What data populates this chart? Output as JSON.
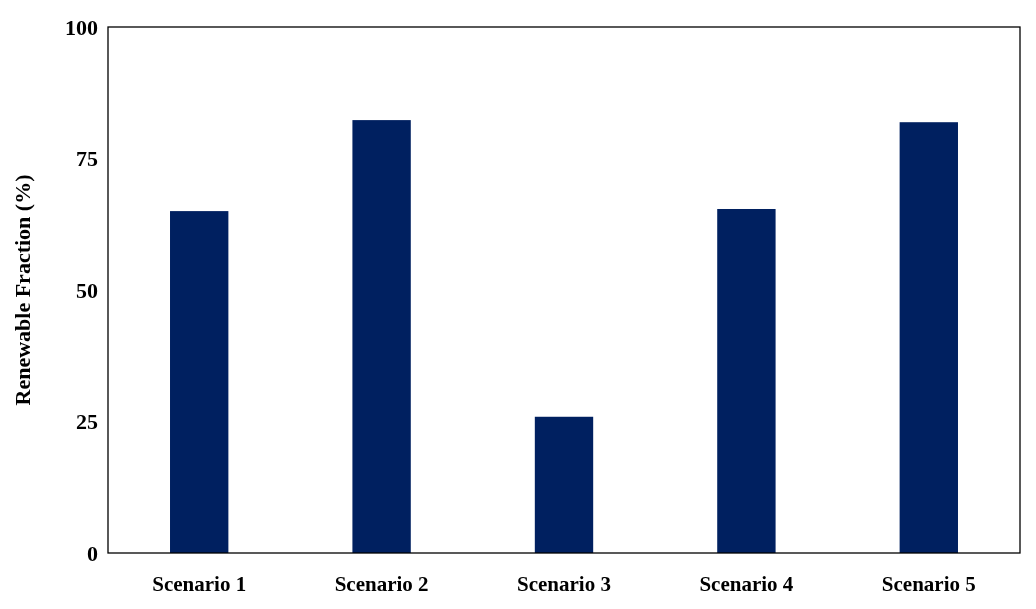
{
  "chart_data": {
    "type": "bar",
    "ylabel": "Renewable Fraction (%)",
    "categories": [
      "Scenario 1",
      "Scenario 2",
      "Scenario 3",
      "Scenario 4",
      "Scenario 5"
    ],
    "values": [
      65,
      82.3,
      25.9,
      65.4,
      81.9
    ],
    "color": "#002060",
    "ylim": [
      0,
      100
    ],
    "yticks": [
      0,
      25,
      50,
      75,
      100
    ],
    "grid": false
  }
}
